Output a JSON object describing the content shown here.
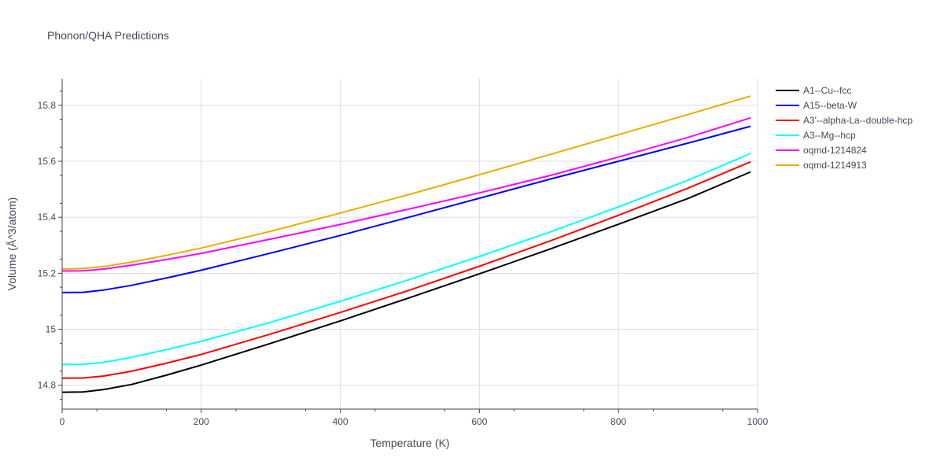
{
  "chart_data": {
    "type": "line",
    "title": "Phonon/QHA Predictions",
    "xlabel": "Temperature (K)",
    "ylabel": "Volume (Å^3/atom)",
    "xlim": [
      0,
      1000
    ],
    "ylim": [
      14.715,
      15.895
    ],
    "xticks": [
      0,
      200,
      400,
      600,
      800,
      1000
    ],
    "xtick_labels": [
      "0",
      "200",
      "400",
      "600",
      "800",
      "1000"
    ],
    "yticks": [
      14.8,
      15.0,
      15.2,
      15.4,
      15.6,
      15.8
    ],
    "ytick_labels": [
      "14.8",
      "15",
      "15.2",
      "15.4",
      "15.6",
      "15.8"
    ],
    "grid": true,
    "legend_position": "right",
    "x": [
      0,
      30,
      60,
      100,
      150,
      200,
      300,
      400,
      500,
      600,
      700,
      800,
      900,
      990
    ],
    "series": [
      {
        "name": "A1--Cu--fcc",
        "color": "#000000",
        "values": [
          14.775,
          14.776,
          14.785,
          14.803,
          14.836,
          14.872,
          14.95,
          15.03,
          15.113,
          15.198,
          15.285,
          15.375,
          15.467,
          15.562
        ]
      },
      {
        "name": "A15--beta-W",
        "color": "#0000ff",
        "values": [
          15.131,
          15.132,
          15.14,
          15.157,
          15.183,
          15.211,
          15.272,
          15.335,
          15.401,
          15.468,
          15.535,
          15.6,
          15.665,
          15.725
        ]
      },
      {
        "name": "A3'--alpha-La--double-hcp",
        "color": "#ff0000",
        "values": [
          14.825,
          14.826,
          14.833,
          14.85,
          14.879,
          14.91,
          14.983,
          15.06,
          15.14,
          15.225,
          15.314,
          15.407,
          15.504,
          15.598
        ]
      },
      {
        "name": "A3--Mg--hcp",
        "color": "#00ffff",
        "values": [
          14.874,
          14.875,
          14.882,
          14.9,
          14.927,
          14.957,
          15.025,
          15.1,
          15.178,
          15.26,
          15.346,
          15.437,
          15.532,
          15.628
        ]
      },
      {
        "name": "oqmd-1214824",
        "color": "#ff00ff",
        "values": [
          15.208,
          15.209,
          15.215,
          15.229,
          15.249,
          15.271,
          15.322,
          15.374,
          15.43,
          15.487,
          15.548,
          15.615,
          15.685,
          15.755
        ]
      },
      {
        "name": "oqmd-1214913",
        "color": "#e6b000",
        "values": [
          15.215,
          15.217,
          15.224,
          15.24,
          15.264,
          15.29,
          15.35,
          15.415,
          15.482,
          15.552,
          15.623,
          15.695,
          15.767,
          15.833
        ]
      }
    ]
  }
}
